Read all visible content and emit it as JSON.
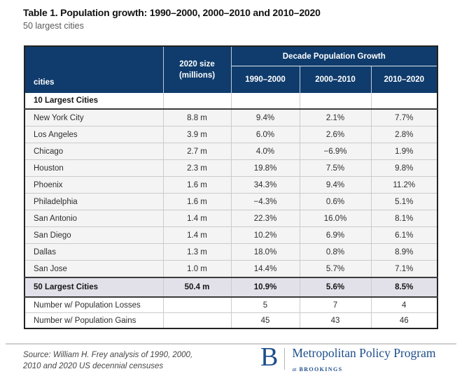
{
  "chart_data": {
    "type": "table",
    "title": "Table 1. Population growth: 1990–2000, 2000–2010 and 2010–2020",
    "subtitle": "50 largest cities",
    "group_header": "Decade Population Growth",
    "columns": [
      "cities",
      "2020 size (millions)",
      "1990–2000",
      "2000–2010",
      "2010–2020"
    ],
    "rows": [
      [
        "10 Largest Cities",
        "",
        "",
        "",
        ""
      ],
      [
        "New York City",
        "8.8 m",
        "9.4%",
        "2.1%",
        "7.7%"
      ],
      [
        "Los Angeles",
        "3.9 m",
        "6.0%",
        "2.6%",
        "2.8%"
      ],
      [
        "Chicago",
        "2.7 m",
        "4.0%",
        "−6.9%",
        "1.9%"
      ],
      [
        "Houston",
        "2.3 m",
        "19.8%",
        "7.5%",
        "9.8%"
      ],
      [
        "Phoenix",
        "1.6 m",
        "34.3%",
        "9.4%",
        "11.2%"
      ],
      [
        "Philadelphia",
        "1.6 m",
        "−4.3%",
        "0.6%",
        "5.1%"
      ],
      [
        "San Antonio",
        "1.4 m",
        "22.3%",
        "16.0%",
        "8.1%"
      ],
      [
        "San Diego",
        "1.4 m",
        "10.2%",
        "6.9%",
        "6.1%"
      ],
      [
        "Dallas",
        "1.3 m",
        "18.0%",
        "0.8%",
        "8.9%"
      ],
      [
        "San Jose",
        "1.0 m",
        "14.4%",
        "5.7%",
        "7.1%"
      ],
      [
        "50 Largest Cities",
        "50.4 m",
        "10.9%",
        "5.6%",
        "8.5%"
      ],
      [
        "Number w/ Population Losses",
        "",
        "5",
        "7",
        "4"
      ],
      [
        "Number w/ Population Gains",
        "",
        "45",
        "43",
        "46"
      ]
    ]
  },
  "table_header": {
    "cities": "cities",
    "size_line1": "2020 size",
    "size_line2": "(millions)",
    "group": "Decade Population Growth",
    "decades": [
      "1990–2000",
      "2000–2010",
      "2010–2020"
    ]
  },
  "footer": {
    "source_line1": "Source: William H. Frey analysis of 1990, 2000,",
    "source_line2": "2010 and 2020 US decennial censuses",
    "logo_letter": "B",
    "logo_title": "Metropolitan Policy Program",
    "logo_subtitle_prefix": "at",
    "logo_subtitle": "BROOKINGS"
  },
  "colors": {
    "header_bg": "#0f3c6c",
    "header_text": "#ffffff",
    "data_row_bg": "#f4f4f5",
    "total_row_bg": "#e2e1ea",
    "border_dark": "#222222",
    "brookings_navy": "#1d4e8a"
  }
}
